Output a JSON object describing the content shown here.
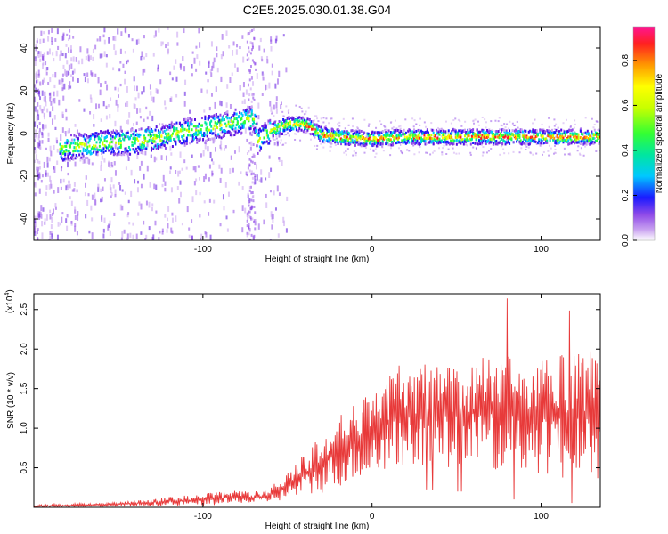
{
  "title": "C2E5.2025.030.01.38.G04",
  "colors": {
    "snr_line": "#e83a3a",
    "colormap": [
      "#ffffff",
      "#c9a2f0",
      "#8f4ae8",
      "#5a10e0",
      "#1a1aff",
      "#00c8ff",
      "#00e6a0",
      "#33ff33",
      "#c8ff00",
      "#ffff00",
      "#ff9900",
      "#ff2020",
      "#ff1493"
    ]
  },
  "chart_data": [
    {
      "type": "heatmap",
      "xlabel": "Height of straight line (km)",
      "ylabel": "Frequency (Hz)",
      "xlim": [
        -200,
        135
      ],
      "ylim": [
        -50,
        50
      ],
      "xticks": [
        -100,
        0,
        100
      ],
      "xtick_labels": [
        "-100",
        "0",
        "100"
      ],
      "yticks": [
        -40,
        -20,
        0,
        20,
        40
      ],
      "ytick_labels": [
        "-40",
        "-20",
        "0",
        "20",
        "40"
      ],
      "ridge": {
        "x": [
          -180,
          -160,
          -140,
          -120,
          -100,
          -80,
          -70,
          -68,
          -60,
          -50,
          -40,
          -30,
          -20,
          0,
          20,
          40,
          60,
          80,
          100,
          120,
          135
        ],
        "y": [
          -6,
          -4,
          -3,
          0,
          3,
          6,
          8,
          -3,
          2,
          5,
          5,
          0,
          -1,
          -2,
          -1,
          -1,
          -1,
          -1,
          -1,
          -1,
          -1
        ]
      },
      "colorbar": {
        "label": "Normalized spectral amplitude",
        "range": [
          0,
          0.95
        ],
        "ticks": [
          0.0,
          0.2,
          0.4,
          0.6,
          0.8
        ],
        "tick_labels": [
          "0.0",
          "0.2",
          "0.4",
          "0.6",
          "0.8"
        ]
      }
    },
    {
      "type": "line",
      "xlabel": "Height of straight line (km)",
      "ylabel": "SNR (10 * v/v)",
      "y_multiplier_label": "(x10",
      "y_multiplier_exp": "4",
      "y_multiplier_close": ")",
      "xlim": [
        -200,
        135
      ],
      "ylim": [
        0,
        2.7
      ],
      "xticks": [
        -100,
        0,
        100
      ],
      "xtick_labels": [
        "-100",
        "0",
        "100"
      ],
      "yticks": [
        0.5,
        1.0,
        1.5,
        2.0,
        2.5
      ],
      "ytick_labels": [
        "0.5",
        "1.0",
        "1.5",
        "2.0",
        "2.5"
      ],
      "envelope": {
        "x": [
          -200,
          -150,
          -100,
          -80,
          -65,
          -55,
          -45,
          -35,
          -25,
          -15,
          -5,
          5,
          15,
          25,
          40,
          60,
          80,
          100,
          120,
          135
        ],
        "upper": [
          0.03,
          0.07,
          0.17,
          0.22,
          0.2,
          0.35,
          0.55,
          0.85,
          1.1,
          1.25,
          1.45,
          1.6,
          1.8,
          1.8,
          1.85,
          1.9,
          2.0,
          1.9,
          1.95,
          2.0
        ],
        "lower": [
          0.0,
          0.01,
          0.02,
          0.04,
          0.05,
          0.08,
          0.12,
          0.15,
          0.2,
          0.3,
          0.35,
          0.45,
          0.5,
          0.55,
          0.5,
          0.5,
          0.4,
          0.4,
          0.35,
          0.35
        ]
      }
    }
  ]
}
